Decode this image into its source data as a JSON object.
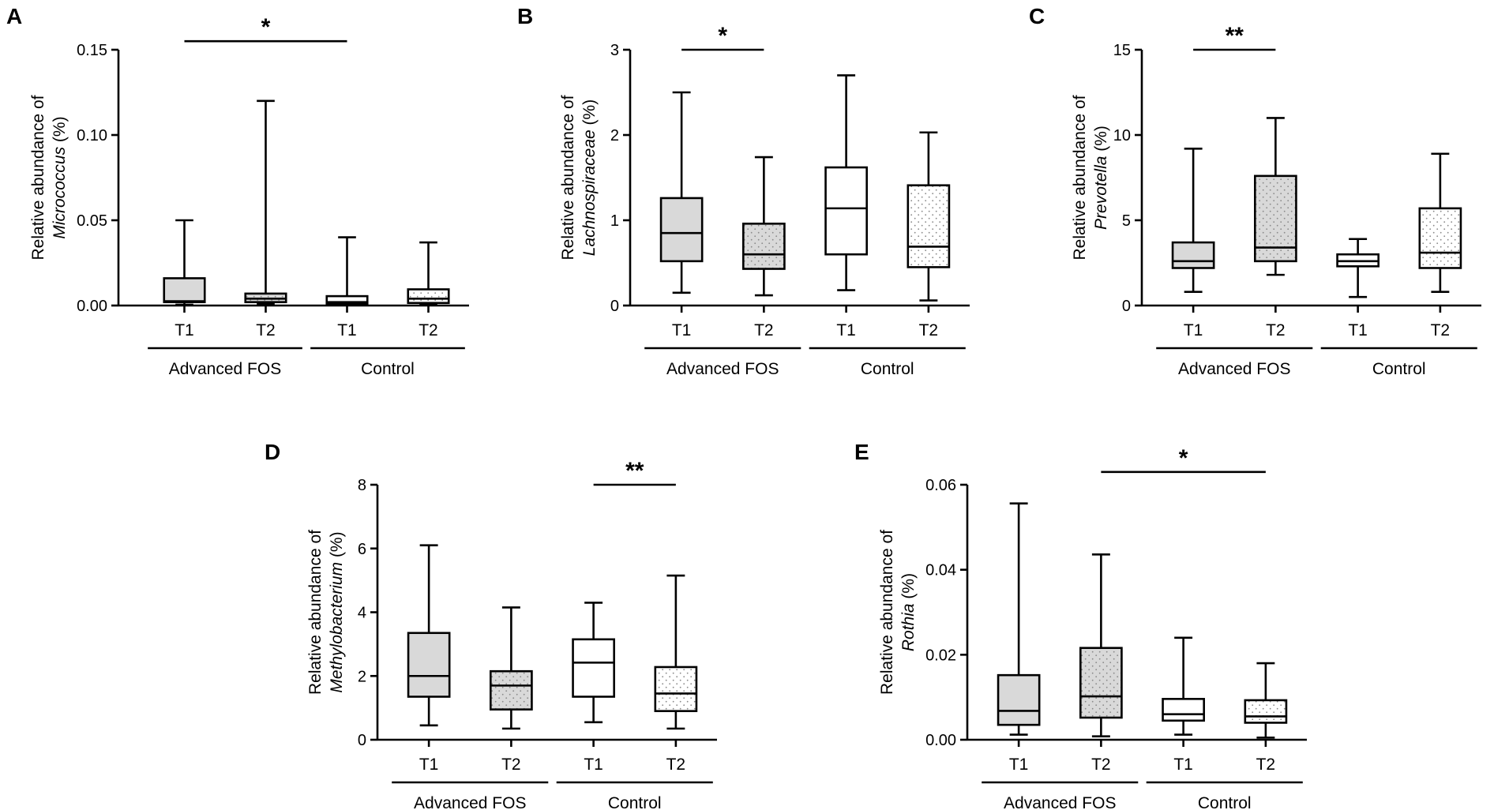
{
  "figure": {
    "fills": {
      "gray": "#d9d9d9",
      "white": "#ffffff",
      "stroke": "#000000",
      "dot": "#8a8a8a"
    },
    "patterns": [
      "solid",
      "dotted",
      "solid",
      "dotted"
    ],
    "fill_names": [
      "gray",
      "gray",
      "white",
      "white"
    ]
  },
  "chart_data": [
    {
      "type": "box",
      "panel": "A",
      "ylabel_prefix": "Relative abundance of",
      "ylabel_taxon": "Micrococcus",
      "ylabel_suffix": " (%)",
      "ylim": [
        0,
        0.15
      ],
      "yticks": [
        0,
        0.05,
        0.1,
        0.15
      ],
      "ytick_labels": [
        "0.00",
        "0.05",
        "0.10",
        "0.15"
      ],
      "categories": [
        "T1",
        "T2",
        "T1",
        "T2"
      ],
      "groups": [
        {
          "label": "Advanced FOS",
          "span": [
            0,
            1
          ]
        },
        {
          "label": "Control",
          "span": [
            2,
            3
          ]
        }
      ],
      "boxes": [
        {
          "min": 0.0005,
          "q1": 0.002,
          "median": 0.0025,
          "q3": 0.016,
          "max": 0.05
        },
        {
          "min": 0.001,
          "q1": 0.002,
          "median": 0.004,
          "q3": 0.007,
          "max": 0.12
        },
        {
          "min": 0.0002,
          "q1": 0.001,
          "median": 0.002,
          "q3": 0.0055,
          "max": 0.04
        },
        {
          "min": 0.0005,
          "q1": 0.0015,
          "median": 0.004,
          "q3": 0.0095,
          "max": 0.037
        }
      ],
      "significance": [
        {
          "from": 0,
          "to": 2,
          "label": "*",
          "y": 0.155
        }
      ]
    },
    {
      "type": "box",
      "panel": "B",
      "ylabel_prefix": "Relative abundance of",
      "ylabel_taxon": "Lachnospiraceae",
      "ylabel_suffix": " (%)",
      "ylim": [
        0,
        3
      ],
      "yticks": [
        0,
        1,
        2,
        3
      ],
      "ytick_labels": [
        "0",
        "1",
        "2",
        "3"
      ],
      "categories": [
        "T1",
        "T2",
        "T1",
        "T2"
      ],
      "groups": [
        {
          "label": "Advanced FOS",
          "span": [
            0,
            1
          ]
        },
        {
          "label": "Control",
          "span": [
            2,
            3
          ]
        }
      ],
      "boxes": [
        {
          "min": 0.15,
          "q1": 0.52,
          "median": 0.85,
          "q3": 1.26,
          "max": 2.5
        },
        {
          "min": 0.12,
          "q1": 0.43,
          "median": 0.6,
          "q3": 0.96,
          "max": 1.74
        },
        {
          "min": 0.18,
          "q1": 0.6,
          "median": 1.14,
          "q3": 1.62,
          "max": 2.7
        },
        {
          "min": 0.06,
          "q1": 0.45,
          "median": 0.69,
          "q3": 1.41,
          "max": 2.03
        }
      ],
      "significance": [
        {
          "from": 0,
          "to": 1,
          "label": "*",
          "y": 3.0
        }
      ]
    },
    {
      "type": "box",
      "panel": "C",
      "ylabel_prefix": "Relative abundance of",
      "ylabel_taxon": "Prevotella",
      "ylabel_suffix": " (%)",
      "ylim": [
        0,
        15
      ],
      "yticks": [
        0,
        5,
        10,
        15
      ],
      "ytick_labels": [
        "0",
        "5",
        "10",
        "15"
      ],
      "categories": [
        "T1",
        "T2",
        "T1",
        "T2"
      ],
      "groups": [
        {
          "label": "Advanced FOS",
          "span": [
            0,
            1
          ]
        },
        {
          "label": "Control",
          "span": [
            2,
            3
          ]
        }
      ],
      "boxes": [
        {
          "min": 0.8,
          "q1": 2.2,
          "median": 2.6,
          "q3": 3.7,
          "max": 9.2
        },
        {
          "min": 1.8,
          "q1": 2.6,
          "median": 3.4,
          "q3": 7.6,
          "max": 11.0
        },
        {
          "min": 0.5,
          "q1": 2.3,
          "median": 2.6,
          "q3": 3.0,
          "max": 3.9
        },
        {
          "min": 0.8,
          "q1": 2.2,
          "median": 3.1,
          "q3": 5.7,
          "max": 8.9
        }
      ],
      "significance": [
        {
          "from": 0,
          "to": 1,
          "label": "**",
          "y": 15.0
        }
      ]
    },
    {
      "type": "box",
      "panel": "D",
      "ylabel_prefix": "Relative abundance of",
      "ylabel_taxon": "Methylobacterium",
      "ylabel_suffix": " (%)",
      "ylim": [
        0,
        8
      ],
      "yticks": [
        0,
        2,
        4,
        6,
        8
      ],
      "ytick_labels": [
        "0",
        "2",
        "4",
        "6",
        "8"
      ],
      "categories": [
        "T1",
        "T2",
        "T1",
        "T2"
      ],
      "groups": [
        {
          "label": "Advanced FOS",
          "span": [
            0,
            1
          ]
        },
        {
          "label": "Control",
          "span": [
            2,
            3
          ]
        }
      ],
      "boxes": [
        {
          "min": 0.45,
          "q1": 1.35,
          "median": 2.0,
          "q3": 3.35,
          "max": 6.1
        },
        {
          "min": 0.35,
          "q1": 0.95,
          "median": 1.7,
          "q3": 2.15,
          "max": 4.15
        },
        {
          "min": 0.55,
          "q1": 1.35,
          "median": 2.42,
          "q3": 3.15,
          "max": 4.3
        },
        {
          "min": 0.35,
          "q1": 0.9,
          "median": 1.45,
          "q3": 2.28,
          "max": 5.15
        }
      ],
      "significance": [
        {
          "from": 2,
          "to": 3,
          "label": "**",
          "y": 8.0
        }
      ]
    },
    {
      "type": "box",
      "panel": "E",
      "ylabel_prefix": "Relative abundance of",
      "ylabel_taxon": "Rothia",
      "ylabel_suffix": " (%)",
      "ylim": [
        0,
        0.06
      ],
      "yticks": [
        0,
        0.02,
        0.04,
        0.06
      ],
      "ytick_labels": [
        "0.00",
        "0.02",
        "0.04",
        "0.06"
      ],
      "categories": [
        "T1",
        "T2",
        "T1",
        "T2"
      ],
      "groups": [
        {
          "label": "Advanced FOS",
          "span": [
            0,
            1
          ]
        },
        {
          "label": "Control",
          "span": [
            2,
            3
          ]
        }
      ],
      "boxes": [
        {
          "min": 0.0012,
          "q1": 0.0035,
          "median": 0.0068,
          "q3": 0.0152,
          "max": 0.0556
        },
        {
          "min": 0.0008,
          "q1": 0.0052,
          "median": 0.0102,
          "q3": 0.0216,
          "max": 0.0436
        },
        {
          "min": 0.0012,
          "q1": 0.0045,
          "median": 0.006,
          "q3": 0.0096,
          "max": 0.024
        },
        {
          "min": 0.0005,
          "q1": 0.004,
          "median": 0.0055,
          "q3": 0.0093,
          "max": 0.018
        }
      ],
      "significance": [
        {
          "from": 1,
          "to": 3,
          "label": "*",
          "y": 0.063
        }
      ]
    }
  ]
}
